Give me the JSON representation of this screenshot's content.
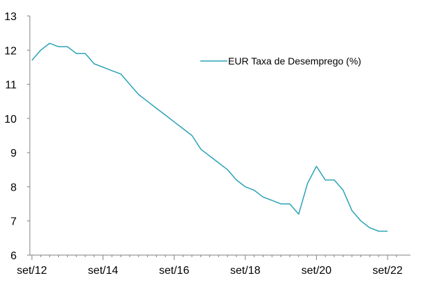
{
  "chart_data": {
    "type": "line",
    "title": "",
    "xlabel": "",
    "ylabel": "",
    "ylim": [
      6,
      13
    ],
    "y_ticks": [
      "6",
      "7",
      "8",
      "9",
      "10",
      "11",
      "12",
      "13"
    ],
    "x_ticks": [
      "set/12",
      "set/14",
      "set/16",
      "set/18",
      "set/20",
      "set/22"
    ],
    "grid": false,
    "legend_position": "top-right",
    "series": [
      {
        "name": "EUR Taxa de Desemprego (%)",
        "color": "#2aa3b6",
        "x": [
          "2012-09",
          "2012-12",
          "2013-03",
          "2013-06",
          "2013-09",
          "2013-12",
          "2014-03",
          "2014-06",
          "2014-09",
          "2014-12",
          "2015-03",
          "2015-06",
          "2015-09",
          "2015-12",
          "2016-03",
          "2016-06",
          "2016-09",
          "2016-12",
          "2017-03",
          "2017-06",
          "2017-09",
          "2017-12",
          "2018-03",
          "2018-06",
          "2018-09",
          "2018-12",
          "2019-03",
          "2019-06",
          "2019-09",
          "2019-12",
          "2020-03",
          "2020-06",
          "2020-09",
          "2020-12",
          "2021-03",
          "2021-06",
          "2021-09",
          "2021-12",
          "2022-03",
          "2022-06",
          "2022-09"
        ],
        "values": [
          11.7,
          12.0,
          12.2,
          12.1,
          12.1,
          11.9,
          11.9,
          11.6,
          11.5,
          11.4,
          11.3,
          11.0,
          10.7,
          10.5,
          10.3,
          10.1,
          9.9,
          9.7,
          9.5,
          9.1,
          8.9,
          8.7,
          8.5,
          8.2,
          8.0,
          7.9,
          7.7,
          7.6,
          7.5,
          7.5,
          7.2,
          8.1,
          8.6,
          8.2,
          8.2,
          7.9,
          7.3,
          7.0,
          6.8,
          6.7,
          6.7
        ]
      }
    ]
  }
}
